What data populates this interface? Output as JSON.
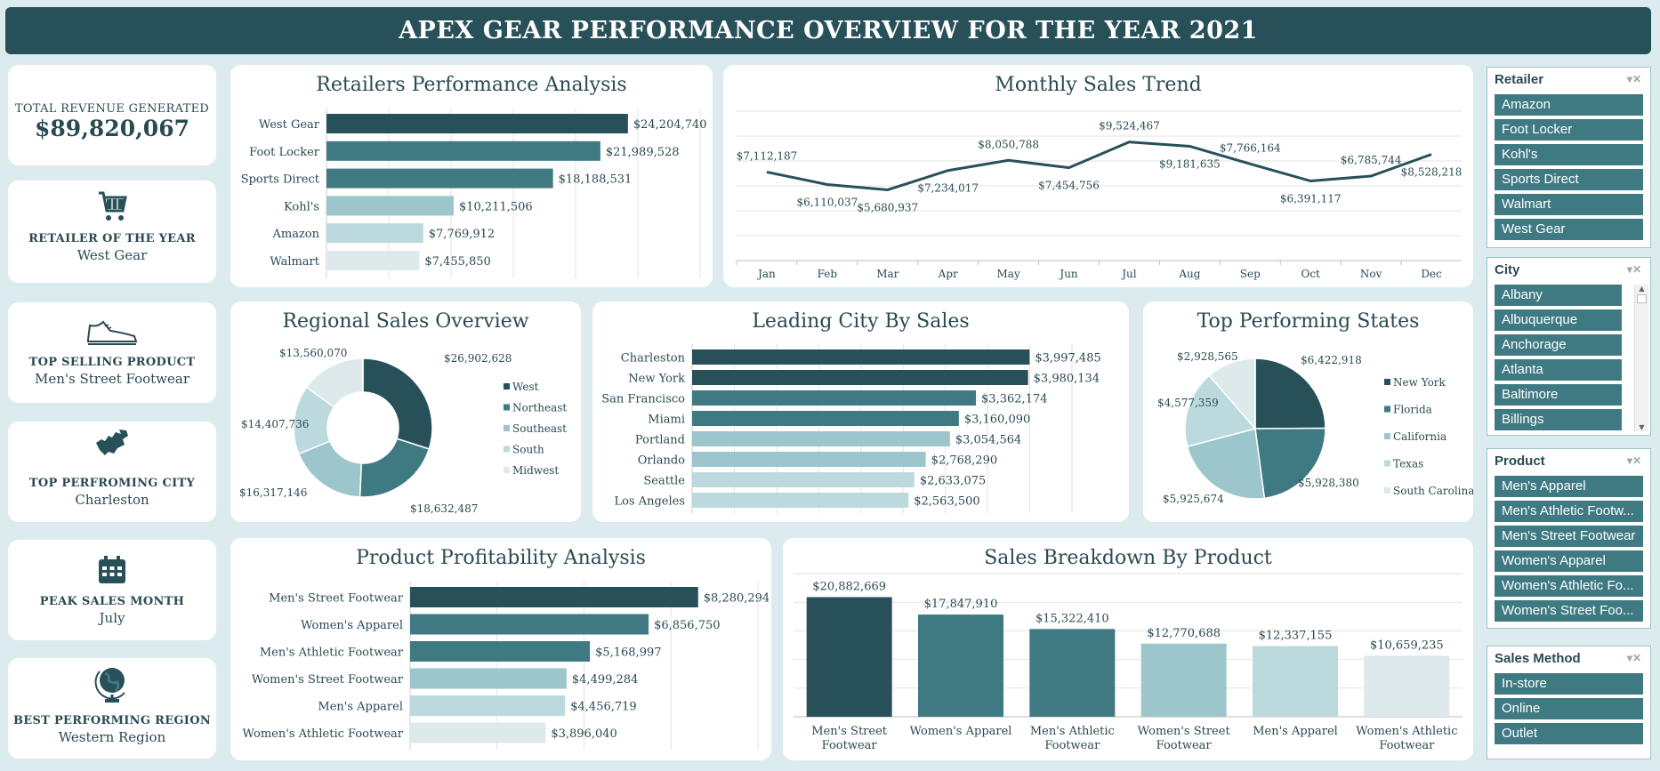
{
  "header": {
    "title": "APEX GEAR PERFORMANCE OVERVIEW FOR THE YEAR 2021"
  },
  "colors": {
    "dark": "#285059",
    "mid": "#3f7a83",
    "light": "#9dc6cc",
    "lighter": "#bcdade",
    "lightest": "#dde9eb"
  },
  "kpis": {
    "revenue": {
      "label": "TOTAL REVENUE GENERATED",
      "value": "$89,820,067"
    },
    "retailer": {
      "label": "RETAILER OF THE YEAR",
      "value": "West Gear",
      "icon": "shopping-cart-icon"
    },
    "product": {
      "label": "TOP SELLING PRODUCT",
      "value": "Men's Street Footwear",
      "icon": "sneaker-icon"
    },
    "city": {
      "label": "TOP PERFROMING CITY",
      "value": "Charleston",
      "icon": "map-icon"
    },
    "month": {
      "label": "PEAK SALES MONTH",
      "value": "July",
      "icon": "calendar-icon"
    },
    "region": {
      "label": "BEST PERFORMING REGION",
      "value": "Western Region",
      "icon": "globe-icon"
    }
  },
  "chart_data": [
    {
      "id": "retailers",
      "type": "bar",
      "orientation": "horizontal",
      "title": "Retailers Performance Analysis",
      "categories": [
        "West Gear",
        "Foot Locker",
        "Sports Direct",
        "Kohl's",
        "Amazon",
        "Walmart"
      ],
      "values": [
        24204740,
        21989528,
        18188531,
        10211506,
        7769912,
        7455850
      ],
      "labels": [
        "$24,204,740",
        "$21,989,528",
        "$18,188,531",
        "$10,211,506",
        "$7,769,912",
        "$7,455,850"
      ],
      "xlim": [
        0,
        30000000
      ],
      "grid": true
    },
    {
      "id": "monthly",
      "type": "line",
      "title": "Monthly Sales Trend",
      "categories": [
        "Jan",
        "Feb",
        "Mar",
        "Apr",
        "May",
        "Jun",
        "Jul",
        "Aug",
        "Sep",
        "Oct",
        "Nov",
        "Dec"
      ],
      "values": [
        7112187,
        6110037,
        5680937,
        7234017,
        8050788,
        7454756,
        9524467,
        9181635,
        7766164,
        6391117,
        6785744,
        8528218
      ],
      "labels": [
        "$7,112,187",
        "$6,110,037",
        "$5,680,937",
        "$7,234,017",
        "$8,050,788",
        "$7,454,756",
        "$9,524,467",
        "$9,181,635",
        "$7,766,164",
        "$6,391,117",
        "$6,785,744",
        "$8,528,218"
      ],
      "ylim": [
        0,
        12000000
      ],
      "grid": true
    },
    {
      "id": "regional",
      "type": "pie",
      "donut": true,
      "title": "Regional Sales Overview",
      "categories": [
        "West",
        "Northeast",
        "Southeast",
        "South",
        "Midwest"
      ],
      "values": [
        26902628,
        18632487,
        16317146,
        14407736,
        13560070
      ],
      "labels": [
        "$26,902,628",
        "$18,632,487",
        "$16,317,146",
        "$14,407,736",
        "$13,560,070"
      ],
      "legend": "right"
    },
    {
      "id": "cities",
      "type": "bar",
      "orientation": "horizontal",
      "title": "Leading City By Sales",
      "categories": [
        "Charleston",
        "New York",
        "San Francisco",
        "Miami",
        "Portland",
        "Orlando",
        "Seattle",
        "Los Angeles"
      ],
      "values": [
        3997485,
        3980134,
        3362174,
        3160090,
        3054564,
        2768290,
        2633075,
        2563500
      ],
      "labels": [
        "$3,997,485",
        "$3,980,134",
        "$3,362,174",
        "$3,160,090",
        "$3,054,564",
        "$2,768,290",
        "$2,633,075",
        "$2,563,500"
      ],
      "xlim": [
        0,
        4500000
      ],
      "grid": true
    },
    {
      "id": "states",
      "type": "pie",
      "title": "Top Performing States",
      "categories": [
        "New York",
        "Florida",
        "California",
        "Texas",
        "South Carolina"
      ],
      "values": [
        6422918,
        5928380,
        5925674,
        4577359,
        2928565
      ],
      "labels": [
        "$6,422,918",
        "$5,928,380",
        "$5,925,674",
        "$4,577,359",
        "$2,928,565"
      ],
      "legend": "right"
    },
    {
      "id": "profit",
      "type": "bar",
      "orientation": "horizontal",
      "title": "Product Profitability Analysis",
      "categories": [
        "Men's Street Footwear",
        "Women's Apparel",
        "Men's Athletic Footwear",
        "Women's Street Footwear",
        "Men's Apparel",
        "Women's Athletic Footwear"
      ],
      "values": [
        8280294,
        6856750,
        5168997,
        4499284,
        4456719,
        3896040
      ],
      "labels": [
        "$8,280,294",
        "$6,856,750",
        "$5,168,997",
        "$4,499,284",
        "$4,456,719",
        "$3,896,040"
      ],
      "xlim": [
        0,
        10000000
      ],
      "grid": true
    },
    {
      "id": "breakdown",
      "type": "bar",
      "orientation": "vertical",
      "title": "Sales Breakdown By Product",
      "categories": [
        [
          "Men's Street",
          "Footwear"
        ],
        [
          "Women's Apparel"
        ],
        [
          "Men's Athletic",
          "Footwear"
        ],
        [
          "Women's Street",
          "Footwear"
        ],
        [
          "Men's Apparel"
        ],
        [
          "Women's Athletic",
          "Footwear"
        ]
      ],
      "values": [
        20882669,
        17847910,
        15322410,
        12770688,
        12337155,
        10659235
      ],
      "labels": [
        "$20,882,669",
        "$17,847,910",
        "$15,322,410",
        "$12,770,688",
        "$12,337,155",
        "$10,659,235"
      ],
      "ylim": [
        0,
        25000000
      ],
      "grid": true
    }
  ],
  "slicers": {
    "retailer": {
      "title": "Retailer",
      "items": [
        "Amazon",
        "Foot Locker",
        "Kohl's",
        "Sports Direct",
        "Walmart",
        "West Gear"
      ]
    },
    "city": {
      "title": "City",
      "items": [
        "Albany",
        "Albuquerque",
        "Anchorage",
        "Atlanta",
        "Baltimore",
        "Billings"
      ]
    },
    "product": {
      "title": "Product",
      "items": [
        "Men's Apparel",
        "Men's Athletic Footw...",
        "Men's Street Footwear",
        "Women's Apparel",
        "Women's Athletic Fo...",
        "Women's Street Foo..."
      ]
    },
    "method": {
      "title": "Sales Method",
      "items": [
        "In-store",
        "Online",
        "Outlet"
      ]
    }
  }
}
